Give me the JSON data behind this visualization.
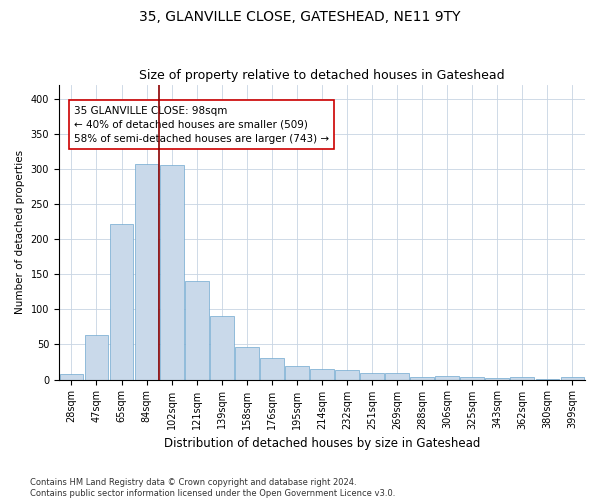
{
  "title1": "35, GLANVILLE CLOSE, GATESHEAD, NE11 9TY",
  "title2": "Size of property relative to detached houses in Gateshead",
  "xlabel": "Distribution of detached houses by size in Gateshead",
  "ylabel": "Number of detached properties",
  "categories": [
    "28sqm",
    "47sqm",
    "65sqm",
    "84sqm",
    "102sqm",
    "121sqm",
    "139sqm",
    "158sqm",
    "176sqm",
    "195sqm",
    "214sqm",
    "232sqm",
    "251sqm",
    "269sqm",
    "288sqm",
    "306sqm",
    "325sqm",
    "343sqm",
    "362sqm",
    "380sqm",
    "399sqm"
  ],
  "values": [
    8,
    63,
    222,
    307,
    305,
    140,
    90,
    47,
    30,
    19,
    15,
    13,
    10,
    10,
    4,
    5,
    4,
    2,
    4,
    1,
    4
  ],
  "bar_color": "#c9d9ea",
  "bar_edge_color": "#6fa8d0",
  "vline_color": "#8b0000",
  "annotation_text": "35 GLANVILLE CLOSE: 98sqm\n← 40% of detached houses are smaller (509)\n58% of semi-detached houses are larger (743) →",
  "annotation_box_color": "white",
  "annotation_box_edge": "#cc0000",
  "ylim": [
    0,
    420
  ],
  "yticks": [
    0,
    50,
    100,
    150,
    200,
    250,
    300,
    350,
    400
  ],
  "grid_color": "#c8d4e3",
  "footer": "Contains HM Land Registry data © Crown copyright and database right 2024.\nContains public sector information licensed under the Open Government Licence v3.0.",
  "title1_fontsize": 10,
  "title2_fontsize": 9,
  "xlabel_fontsize": 8.5,
  "ylabel_fontsize": 7.5,
  "tick_fontsize": 7,
  "annotation_fontsize": 7.5,
  "footer_fontsize": 6
}
